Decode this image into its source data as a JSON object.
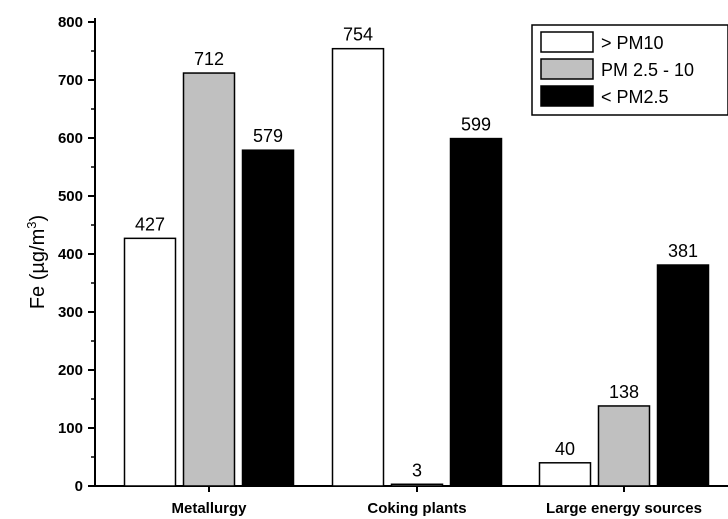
{
  "chart_data": {
    "type": "bar",
    "title": "",
    "xlabel": "",
    "ylabel": "Fe (µg/m3)",
    "ylabel_parts": {
      "main": "Fe (µg/m",
      "sup": "3",
      "close": ")"
    },
    "ylim": [
      0,
      800
    ],
    "yticks": [
      "0",
      "100",
      "200",
      "300",
      "400",
      "500",
      "600",
      "700",
      "800"
    ],
    "ytick_values": [
      0,
      100,
      200,
      300,
      400,
      500,
      600,
      700,
      800
    ],
    "categories": [
      "Metallurgy",
      "Coking plants",
      "Large energy sources"
    ],
    "series": [
      {
        "name": "> PM10",
        "values": [
          427,
          754,
          40
        ],
        "labels": [
          "427",
          "754",
          "40"
        ],
        "color": "#ffffff"
      },
      {
        "name": "PM 2.5 - 10",
        "values": [
          712,
          3,
          138
        ],
        "labels": [
          "712",
          "3",
          "138"
        ],
        "color": "#c0c0c0"
      },
      {
        "name": "< PM2.5",
        "values": [
          579,
          599,
          381
        ],
        "labels": [
          "579",
          "599",
          "381"
        ],
        "color": "#000000"
      }
    ],
    "legend": "top-right",
    "grid": false
  }
}
